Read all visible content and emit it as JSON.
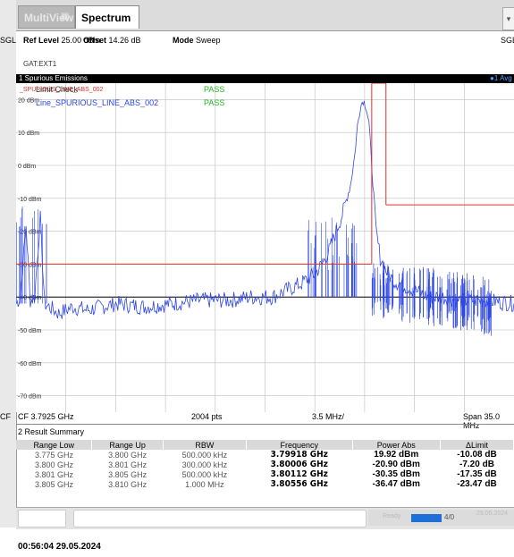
{
  "tabs": [
    {
      "label": "MultiView",
      "active": false
    },
    {
      "label": "Spectrum",
      "active": true
    }
  ],
  "params": {
    "ref_level_label": "Ref Level",
    "ref_level_value": "25.00 dBm",
    "offset_label": "Offset",
    "offset_value": "14.26 dB",
    "mode_label": "Mode",
    "mode_value": "Sweep",
    "sgl_right": "SGL",
    "sgl_left": "SGL",
    "trigger": "GAT:EXT1"
  },
  "diagram": {
    "title": "1 Spurious Emissions",
    "trace_label": "●1 Avg",
    "limit_check_label": "Limit Check",
    "line_label": "Line_SPURIOUS_LINE_ABS_002",
    "line_label_red": "_SPURIOUS_LINE_ABS_002",
    "status_1": "PASS",
    "status_2": "PASS"
  },
  "chart_data": {
    "type": "line",
    "title": "",
    "xlabel": "",
    "ylabel": "",
    "x_unit": "GHz",
    "xlim": [
      3.775,
      3.81
    ],
    "ylim": [
      -75,
      25
    ],
    "y_ticks": [
      "20 dBm",
      "10 dBm",
      "0 dBm",
      "-10 dBm",
      "-20 dBm",
      "-30 dBm",
      "-40 dBm",
      "-50 dBm",
      "-60 dBm",
      "-70 dBm"
    ],
    "y_tick_values": [
      20,
      10,
      0,
      -10,
      -20,
      -30,
      -40,
      -50,
      -60,
      -70
    ],
    "reference_line_dbm": -40,
    "grid": true,
    "series": [
      {
        "name": "1 Avg",
        "color": "#2d46e6",
        "x": [
          3.775,
          3.7753,
          3.7757,
          3.776,
          3.7763,
          3.7767,
          3.777,
          3.778,
          3.779,
          3.78,
          3.782,
          3.784,
          3.786,
          3.788,
          3.79,
          3.7915,
          3.793,
          3.794,
          3.795,
          3.796,
          3.7965,
          3.797,
          3.7975,
          3.798,
          3.7985,
          3.7988,
          3.799,
          3.7992,
          3.7994,
          3.7996,
          3.7998,
          3.8,
          3.8003,
          3.8006,
          3.801,
          3.8015,
          3.802,
          3.803,
          3.804,
          3.805,
          3.806,
          3.807,
          3.808,
          3.81
        ],
        "y": [
          -42,
          -40,
          -18,
          -41,
          -40,
          -16,
          -42,
          -45,
          -43,
          -44,
          -42,
          -43,
          -42,
          -41,
          -41,
          -40,
          -40,
          -38,
          -36,
          -33,
          -30,
          -26,
          -20,
          -14,
          -6,
          3,
          12,
          18,
          19.9,
          18,
          13,
          0,
          -20,
          -28,
          -32,
          -35,
          -36,
          -38,
          -40,
          -40,
          -41,
          -41,
          -41,
          -42
        ]
      }
    ],
    "limit_line": {
      "name": "Line_SPURIOUS_LINE_ABS_002",
      "color": "#e0302a",
      "segments": [
        {
          "x": [
            3.775,
            3.8
          ],
          "y": [
            -30,
            -30
          ]
        },
        {
          "x": [
            3.8,
            3.8
          ],
          "y": [
            -30,
            25
          ]
        },
        {
          "x": [
            3.8,
            3.801
          ],
          "y": [
            25,
            25
          ]
        },
        {
          "x": [
            3.801,
            3.801
          ],
          "y": [
            25,
            -12
          ]
        },
        {
          "x": [
            3.801,
            3.81
          ],
          "y": [
            -12,
            -12
          ]
        }
      ]
    }
  },
  "channel_bar": {
    "cf": "CF 3.7925 GHz",
    "points": "2004 pts",
    "div": "3.5 MHz/",
    "span": "Span 35.0 MHz",
    "left_clip": "CF"
  },
  "result_summary": {
    "title": "2 Result Summary",
    "columns": [
      "Range Low",
      "Range Up",
      "RBW",
      "Frequency",
      "Power Abs",
      "ΔLimit"
    ],
    "rows": [
      [
        "3.775 GHz",
        "3.800 GHz",
        "500.000 kHz",
        "3.79918 GHz",
        "19.92 dBm",
        "-10.08 dB"
      ],
      [
        "3.800 GHz",
        "3.801 GHz",
        "300.000 kHz",
        "3.80006 GHz",
        "-20.90 dBm",
        "-7.20 dB"
      ],
      [
        "3.801 GHz",
        "3.805 GHz",
        "500.000 kHz",
        "3.80112 GHz",
        "-30.35 dBm",
        "-17.35 dB"
      ],
      [
        "3.805 GHz",
        "3.810 GHz",
        "1.000 MHz",
        "3.80556 GHz",
        "-36.47 dBm",
        "-23.47 dB"
      ]
    ]
  },
  "statusbar": {
    "ready_label": "Ready",
    "progress_text": "4/0",
    "date_faint": "29.05.2024",
    "progress_fraction": 1.0
  },
  "timestamp": "00:56:04  29.05.2024",
  "colors": {
    "trace": "#2d46e6",
    "limit": "#e0302a",
    "pass": "#22b422",
    "header_bg": "#000000"
  }
}
